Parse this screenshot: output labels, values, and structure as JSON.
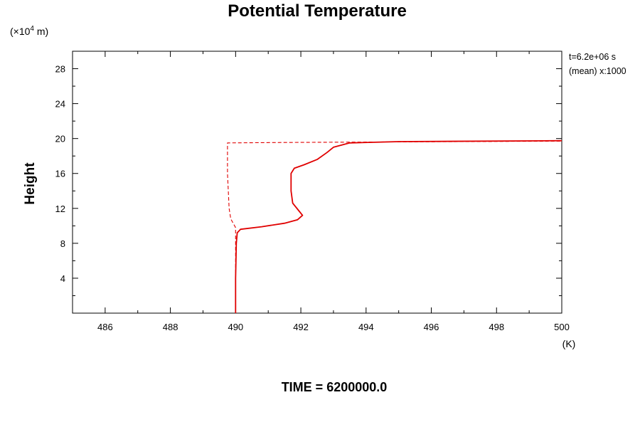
{
  "header": {
    "title": "Potential Temperature",
    "y_unit_prefix": "(×10",
    "y_unit_exponent": "4",
    "y_unit_suffix": " m)"
  },
  "annotations": {
    "time_label": "t=6.2e+06 s",
    "mean_label": "(mean) x:1000"
  },
  "footer": {
    "time_text": "TIME = 6200000.0"
  },
  "chart_data": {
    "type": "line",
    "title": "Potential Temperature",
    "xlabel": "(K)",
    "ylabel": "Height",
    "xlim": [
      485,
      500
    ],
    "ylim": [
      0,
      30
    ],
    "x_ticks": [
      486,
      488,
      490,
      492,
      494,
      496,
      498,
      500
    ],
    "x_tick_labels": [
      "486",
      "488",
      "490",
      "492",
      "494",
      "496",
      "498",
      "500"
    ],
    "y_ticks": [
      4,
      8,
      12,
      16,
      20,
      24,
      28
    ],
    "y_tick_labels": [
      "4",
      "8",
      "12",
      "16",
      "20",
      "24",
      "28"
    ],
    "grid": false,
    "line_color": "#e00000",
    "series": [
      {
        "style": "solid",
        "points": [
          [
            490.0,
            0.0
          ],
          [
            490.0,
            4.0
          ],
          [
            490.02,
            8.0
          ],
          [
            490.05,
            9.2
          ],
          [
            490.15,
            9.6
          ],
          [
            490.8,
            9.9
          ],
          [
            491.5,
            10.3
          ],
          [
            491.9,
            10.7
          ],
          [
            492.05,
            11.2
          ],
          [
            491.9,
            11.9
          ],
          [
            491.75,
            12.6
          ],
          [
            491.7,
            14.0
          ],
          [
            491.7,
            16.0
          ],
          [
            491.8,
            16.6
          ],
          [
            492.1,
            17.0
          ],
          [
            492.5,
            17.6
          ],
          [
            492.8,
            18.4
          ],
          [
            493.0,
            19.0
          ],
          [
            493.5,
            19.5
          ],
          [
            495.0,
            19.65
          ],
          [
            500.0,
            19.75
          ]
        ]
      },
      {
        "style": "dashed",
        "points": [
          [
            490.0,
            0.0
          ],
          [
            490.0,
            9.8
          ],
          [
            489.85,
            10.8
          ],
          [
            489.8,
            12.0
          ],
          [
            489.75,
            16.0
          ],
          [
            489.75,
            19.5
          ],
          [
            491.5,
            19.55
          ],
          [
            494.0,
            19.6
          ],
          [
            500.0,
            19.7
          ]
        ]
      }
    ]
  }
}
